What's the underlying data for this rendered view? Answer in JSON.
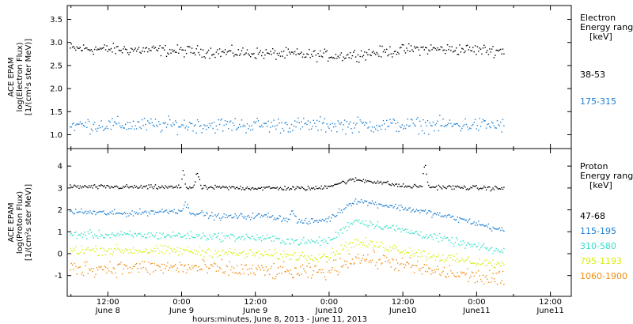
{
  "chart_data": {
    "type": "scatter",
    "x_axis": {
      "label": "hours:minutes, June  8, 2013 - June 11, 2013",
      "ticks": [
        {
          "t": 12,
          "time": "12:00",
          "date": "June 8"
        },
        {
          "t": 24,
          "time": "0:00",
          "date": "June 9"
        },
        {
          "t": 36,
          "time": "12:00",
          "date": "June 9"
        },
        {
          "t": 48,
          "time": "0:00",
          "date": "June10"
        },
        {
          "t": 60,
          "time": "12:00",
          "date": "June10"
        },
        {
          "t": 72,
          "time": "0:00",
          "date": "June11"
        },
        {
          "t": 84,
          "time": "12:00",
          "date": "June11"
        }
      ],
      "range": [
        5.4,
        87.4
      ],
      "data_end": 76.5
    },
    "panels": [
      {
        "id": "electron",
        "ylabel": [
          "ACE EPAM",
          "log(Electron Flux)",
          "[1/(cm²s ster MeV)]"
        ],
        "ylim": [
          0.7,
          3.8
        ],
        "yticks": [
          "1.0",
          "1.5",
          "2.0",
          "2.5",
          "3.0",
          "3.5"
        ],
        "ytick_values": [
          1.0,
          1.5,
          2.0,
          2.5,
          3.0,
          3.5
        ],
        "legend_title": [
          "Electron",
          "Energy ranges",
          "[keV]"
        ],
        "series": [
          {
            "name": "38-53",
            "color": "#000000",
            "base": 2.83,
            "scatter": 0.06,
            "trend": [
              [
                5.4,
                2.88
              ],
              [
                20,
                2.84
              ],
              [
                35,
                2.78
              ],
              [
                50,
                2.72
              ],
              [
                62,
                2.87
              ],
              [
                70,
                2.86
              ],
              [
                76.5,
                2.83
              ]
            ],
            "bumps": []
          },
          {
            "name": "175-315",
            "color": "#1e7fd0",
            "base": 1.22,
            "scatter": 0.08,
            "trend": [
              [
                5.4,
                1.22
              ],
              [
                76.5,
                1.22
              ]
            ],
            "bumps": []
          }
        ]
      },
      {
        "id": "proton",
        "ylabel": [
          "ACE EPAM",
          "log(Proton Flux)",
          "[1/(cm²s ster MeV)]"
        ],
        "ylim": [
          -1.95,
          4.8
        ],
        "yticks": [
          "-1",
          "0",
          "1",
          "2",
          "3",
          "4"
        ],
        "ytick_values": [
          -1,
          0,
          1,
          2,
          3,
          4
        ],
        "legend_title": [
          "Proton",
          "Energy ranges",
          "[keV]"
        ],
        "series": [
          {
            "name": "47-68",
            "color": "#000000",
            "scatter": 0.05,
            "trend": [
              [
                5.4,
                3.08
              ],
              [
                24,
                3.05
              ],
              [
                36,
                3.02
              ],
              [
                46,
                3.0
              ],
              [
                52,
                3.4
              ],
              [
                56,
                3.3
              ],
              [
                60,
                3.1
              ],
              [
                76.5,
                3.0
              ]
            ],
            "bumps": [
              [
                24.2,
                0.9,
                0.4
              ],
              [
                26.5,
                0.7,
                0.6
              ],
              [
                63.5,
                1.2,
                0.5
              ]
            ]
          },
          {
            "name": "115-195",
            "color": "#1e7fd0",
            "scatter": 0.07,
            "trend": [
              [
                5.4,
                1.95
              ],
              [
                14,
                1.85
              ],
              [
                24,
                2.0
              ],
              [
                30,
                1.7
              ],
              [
                38,
                1.75
              ],
              [
                44,
                1.45
              ],
              [
                48,
                1.6
              ],
              [
                52,
                2.45
              ],
              [
                58,
                2.2
              ],
              [
                64,
                1.9
              ],
              [
                70,
                1.55
              ],
              [
                76.5,
                1.05
              ]
            ],
            "bumps": [
              [
                24.6,
                0.35,
                0.7
              ],
              [
                42,
                0.4,
                0.8
              ]
            ]
          },
          {
            "name": "310-580",
            "color": "#33e0c8",
            "scatter": 0.09,
            "trend": [
              [
                5.4,
                0.9
              ],
              [
                24,
                0.85
              ],
              [
                36,
                0.75
              ],
              [
                44,
                0.55
              ],
              [
                48,
                0.6
              ],
              [
                52,
                1.55
              ],
              [
                58,
                1.2
              ],
              [
                64,
                0.85
              ],
              [
                70,
                0.45
              ],
              [
                76.5,
                0.1
              ]
            ],
            "bumps": []
          },
          {
            "name": "795-1193",
            "color": "#d8ee10",
            "scatter": 0.11,
            "trend": [
              [
                5.4,
                0.2
              ],
              [
                24,
                0.15
              ],
              [
                36,
                0.0
              ],
              [
                44,
                -0.1
              ],
              [
                48,
                -0.05
              ],
              [
                52,
                0.55
              ],
              [
                58,
                0.3
              ],
              [
                64,
                -0.05
              ],
              [
                70,
                -0.3
              ],
              [
                76.5,
                -0.5
              ]
            ],
            "bumps": []
          },
          {
            "name": "1060-1900",
            "color": "#f08c10",
            "scatter": 0.18,
            "trend": [
              [
                5.4,
                -0.65
              ],
              [
                24,
                -0.6
              ],
              [
                36,
                -0.75
              ],
              [
                44,
                -0.85
              ],
              [
                48,
                -0.75
              ],
              [
                52,
                -0.15
              ],
              [
                58,
                -0.35
              ],
              [
                64,
                -0.75
              ],
              [
                70,
                -0.95
              ],
              [
                76.5,
                -1.2
              ]
            ],
            "bumps": []
          }
        ]
      }
    ]
  }
}
